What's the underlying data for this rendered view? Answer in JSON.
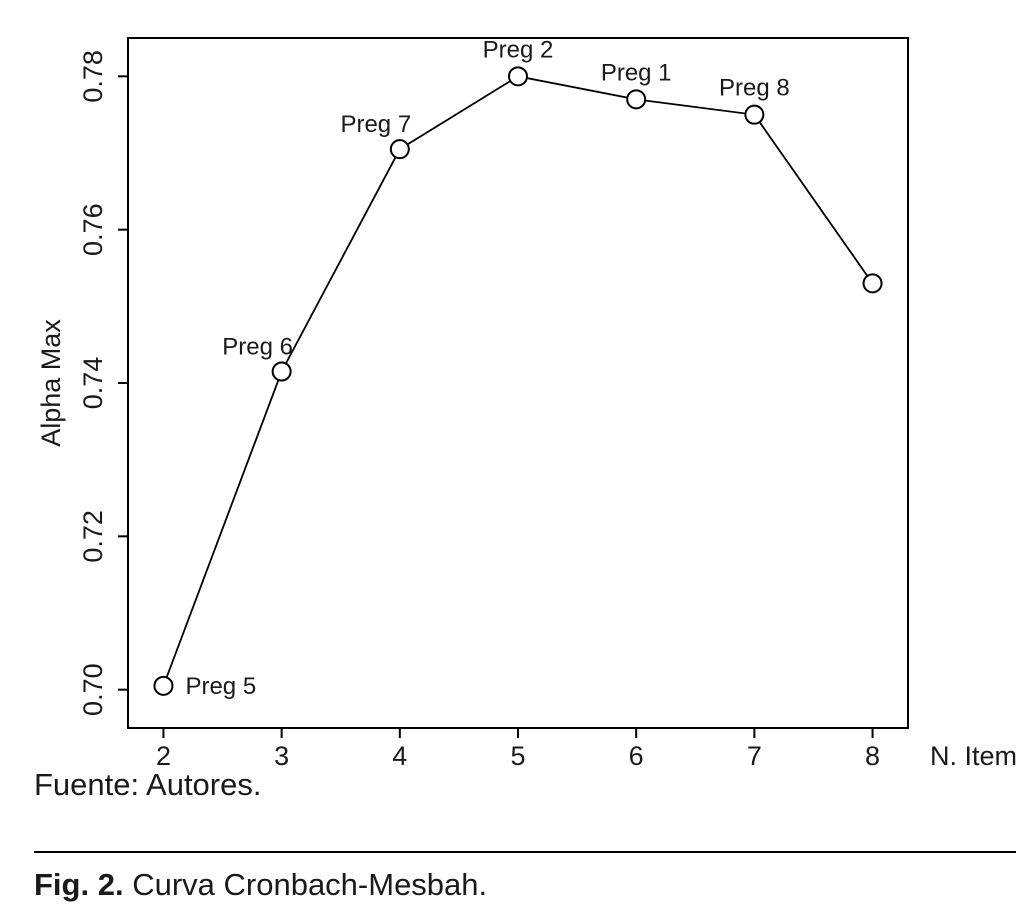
{
  "caption": {
    "source": "Fuente: Autores.",
    "fig_label": "Fig. 2.",
    "fig_title": "Curva Cronbach-Mesbah."
  },
  "chart_data": {
    "type": "line",
    "title": "",
    "xlabel": "N. Item",
    "ylabel": "Alpha Max",
    "xlim": [
      1.7,
      8.3
    ],
    "ylim": [
      0.695,
      0.785
    ],
    "grid": false,
    "marker": "open-circle",
    "colors": {
      "line": "#000000",
      "marker_fill": "#ffffff",
      "marker_stroke": "#000000"
    },
    "x_ticks": [
      2,
      3,
      4,
      5,
      6,
      7,
      8
    ],
    "y_ticks": [
      {
        "value": 0.7,
        "label": "0.70"
      },
      {
        "value": 0.72,
        "label": "0.72"
      },
      {
        "value": 0.74,
        "label": "0.74"
      },
      {
        "value": 0.76,
        "label": "0.76"
      },
      {
        "value": 0.78,
        "label": "0.78"
      }
    ],
    "points": [
      {
        "x": 2,
        "y": 0.7005,
        "label": "Preg 5",
        "label_pos": "right"
      },
      {
        "x": 3,
        "y": 0.7415,
        "label": "Preg 6",
        "label_pos": "above-left"
      },
      {
        "x": 4,
        "y": 0.7705,
        "label": "Preg 7",
        "label_pos": "above-left"
      },
      {
        "x": 5,
        "y": 0.78,
        "label": "Preg 2",
        "label_pos": "above"
      },
      {
        "x": 6,
        "y": 0.777,
        "label": "Preg 1",
        "label_pos": "above"
      },
      {
        "x": 7,
        "y": 0.775,
        "label": "Preg 8",
        "label_pos": "above"
      },
      {
        "x": 8,
        "y": 0.753,
        "label": "",
        "label_pos": "none"
      }
    ]
  }
}
